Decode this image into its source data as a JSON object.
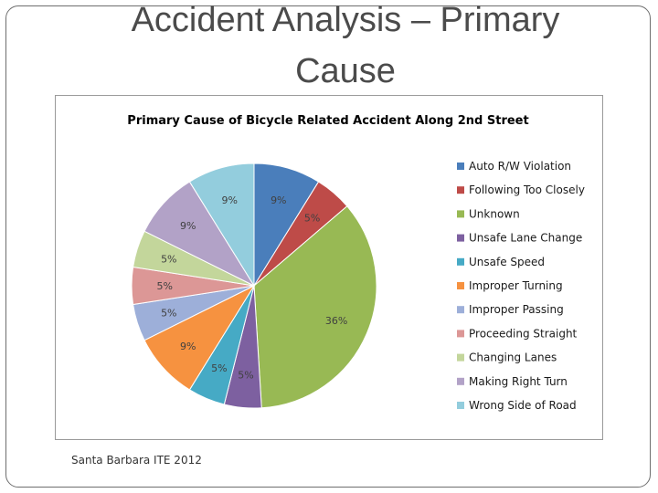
{
  "slide": {
    "title_line1": "Accident Analysis – Primary",
    "title_line2": "Cause",
    "footnote": "Santa Barbara ITE 2012"
  },
  "chart_data": {
    "type": "pie",
    "title": "Primary Cause of Bicycle Related Accident Along 2nd Street",
    "legend_position": "right",
    "slices": [
      {
        "name": "Auto R/W Violation",
        "value": 9,
        "label": "9%",
        "color": "#4a7ebb"
      },
      {
        "name": "Following Too Closely",
        "value": 5,
        "label": "5%",
        "color": "#be4b48"
      },
      {
        "name": "Unknown",
        "value": 36,
        "label": "36%",
        "color": "#98b954"
      },
      {
        "name": "Unsafe Lane Change",
        "value": 5,
        "label": "5%",
        "color": "#7d60a0"
      },
      {
        "name": "Unsafe Speed",
        "value": 5,
        "label": "5%",
        "color": "#46aac5"
      },
      {
        "name": "Improper Turning",
        "value": 9,
        "label": "9%",
        "color": "#f69240"
      },
      {
        "name": "Improper Passing",
        "value": 5,
        "label": "5%",
        "color": "#9dafd9"
      },
      {
        "name": "Proceeding Straight",
        "value": 5,
        "label": "5%",
        "color": "#dc9796"
      },
      {
        "name": "Changing Lanes",
        "value": 5,
        "label": "5%",
        "color": "#c3d69b"
      },
      {
        "name": "Making Right Turn",
        "value": 9,
        "label": "9%",
        "color": "#b2a2c7"
      },
      {
        "name": "Wrong Side of Road",
        "value": 9,
        "label": "9%",
        "color": "#93cddd"
      }
    ]
  }
}
